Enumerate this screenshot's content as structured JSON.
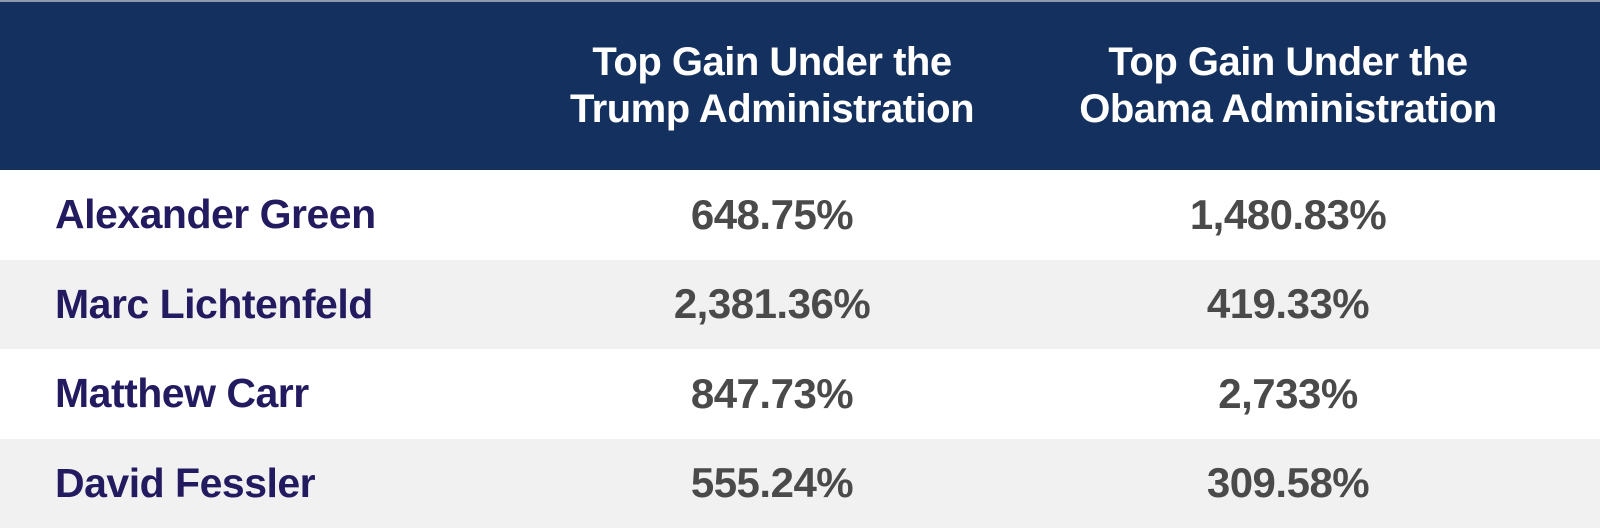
{
  "colors": {
    "header_bg": "#14305E",
    "top_border": "#8E99AB",
    "header_text": "#FFFFFF",
    "name_text": "#231B60",
    "value_text": "#4A4A4A",
    "row_bg": "#FFFFFF",
    "row_alt_bg": "#F1F1F1"
  },
  "table": {
    "headers": [
      {
        "lines": [
          "Top Gain Under the",
          "Trump Administration"
        ]
      },
      {
        "lines": [
          "Top Gain Under the",
          "Obama Administration"
        ]
      }
    ],
    "rows": [
      {
        "name": "Alexander Green",
        "trump_gain": "648.75%",
        "obama_gain": "1,480.83%"
      },
      {
        "name": "Marc Lichtenfeld",
        "trump_gain": "2,381.36%",
        "obama_gain": "419.33%"
      },
      {
        "name": "Matthew Carr",
        "trump_gain": "847.73%",
        "obama_gain": "2,733%"
      },
      {
        "name": "David Fessler",
        "trump_gain": "555.24%",
        "obama_gain": "309.58%"
      }
    ]
  },
  "chart_data": {
    "type": "table",
    "title": "",
    "columns": [
      "",
      "Top Gain Under the Trump Administration",
      "Top Gain Under the Obama Administration"
    ],
    "rows": [
      [
        "Alexander Green",
        "648.75%",
        "1,480.83%"
      ],
      [
        "Marc Lichtenfeld",
        "2,381.36%",
        "419.33%"
      ],
      [
        "Matthew Carr",
        "847.73%",
        "2,733%"
      ],
      [
        "David Fessler",
        "555.24%",
        "309.58%"
      ]
    ],
    "series": [
      {
        "name": "Top Gain Under the Trump Administration",
        "values": [
          648.75,
          2381.36,
          847.73,
          555.24
        ]
      },
      {
        "name": "Top Gain Under the Obama Administration",
        "values": [
          1480.83,
          419.33,
          2733,
          309.58
        ]
      }
    ],
    "categories": [
      "Alexander Green",
      "Marc Lichtenfeld",
      "Matthew Carr",
      "David Fessler"
    ],
    "unit": "%"
  }
}
